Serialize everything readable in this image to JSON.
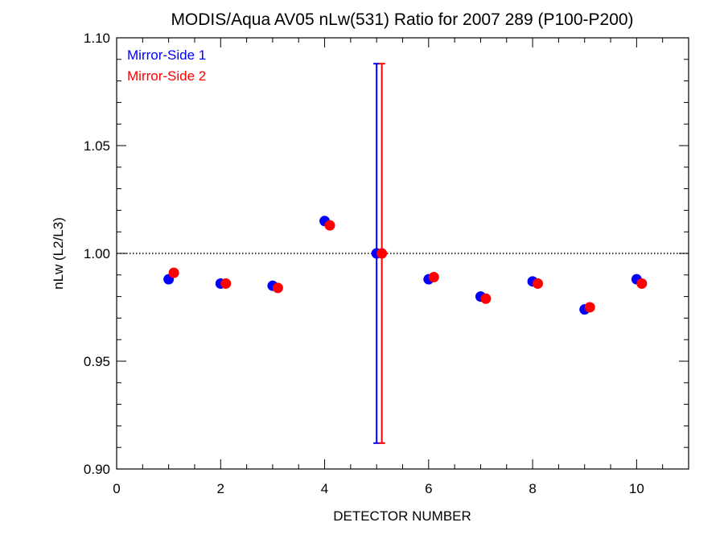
{
  "chart_data": {
    "type": "scatter",
    "title": "MODIS/Aqua AV05 nLw(531) Ratio for 2007 289 (P100-P200)",
    "xlabel": "DETECTOR NUMBER",
    "ylabel": "nLw (L2/L3)",
    "xlim": [
      0,
      11
    ],
    "ylim": [
      0.9,
      1.1
    ],
    "xticks": [
      0,
      2,
      4,
      6,
      8,
      10
    ],
    "xtick_labels": [
      "0",
      "2",
      "4",
      "6",
      "8",
      "10"
    ],
    "yticks": [
      0.9,
      0.95,
      1.0,
      1.05,
      1.1
    ],
    "ytick_labels": [
      "0.90",
      "0.95",
      "1.00",
      "1.05",
      "1.10"
    ],
    "reference_line": 1.0,
    "legend_position": "top-left",
    "series": [
      {
        "name": "Mirror-Side 1",
        "color": "#0000ff",
        "x": [
          1,
          2,
          3,
          4,
          5,
          6,
          7,
          8,
          9,
          10
        ],
        "y": [
          0.988,
          0.986,
          0.985,
          1.015,
          1.0,
          0.988,
          0.98,
          0.987,
          0.974,
          0.988
        ],
        "error_bar": {
          "x": 5,
          "low": 0.912,
          "high": 1.088
        }
      },
      {
        "name": "Mirror-Side 2",
        "color": "#ff0000",
        "x": [
          1.1,
          2.1,
          3.1,
          4.1,
          5.1,
          6.1,
          7.1,
          8.1,
          9.1,
          10.1
        ],
        "y": [
          0.991,
          0.986,
          0.984,
          1.013,
          1.0,
          0.989,
          0.979,
          0.986,
          0.975,
          0.986
        ],
        "error_bar": {
          "x": 5.1,
          "low": 0.912,
          "high": 1.088
        }
      }
    ]
  }
}
